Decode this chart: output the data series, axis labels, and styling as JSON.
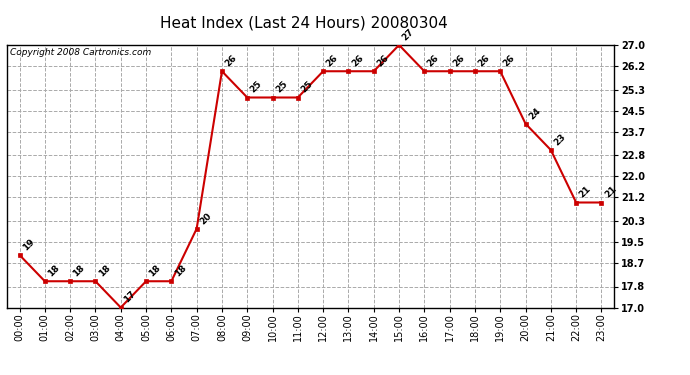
{
  "title": "Heat Index (Last 24 Hours) 20080304",
  "copyright_text": "Copyright 2008 Cartronics.com",
  "hours": [
    0,
    1,
    2,
    3,
    4,
    5,
    6,
    7,
    8,
    9,
    10,
    11,
    12,
    13,
    14,
    15,
    16,
    17,
    18,
    19,
    20,
    21,
    22,
    23
  ],
  "hour_labels": [
    "00:00",
    "01:00",
    "02:00",
    "03:00",
    "04:00",
    "05:00",
    "06:00",
    "07:00",
    "08:00",
    "09:00",
    "10:00",
    "11:00",
    "12:00",
    "13:00",
    "14:00",
    "15:00",
    "16:00",
    "17:00",
    "18:00",
    "19:00",
    "20:00",
    "21:00",
    "22:00",
    "23:00"
  ],
  "values": [
    19,
    18,
    18,
    18,
    17,
    18,
    18,
    20,
    26,
    25,
    25,
    25,
    26,
    26,
    26,
    27,
    26,
    26,
    26,
    26,
    24,
    23,
    21,
    21
  ],
  "ylim": [
    17.0,
    27.0
  ],
  "yticks": [
    17.0,
    17.8,
    18.7,
    19.5,
    20.3,
    21.2,
    22.0,
    22.8,
    23.7,
    24.5,
    25.3,
    26.2,
    27.0
  ],
  "line_color": "#cc0000",
  "marker": "s",
  "marker_size": 3,
  "grid_color": "#aaaaaa",
  "grid_style": "--",
  "bg_color": "#ffffff",
  "plot_bg_color": "#ffffff",
  "title_fontsize": 11,
  "label_fontsize": 7,
  "annotation_fontsize": 6.5,
  "copyright_fontsize": 6.5
}
